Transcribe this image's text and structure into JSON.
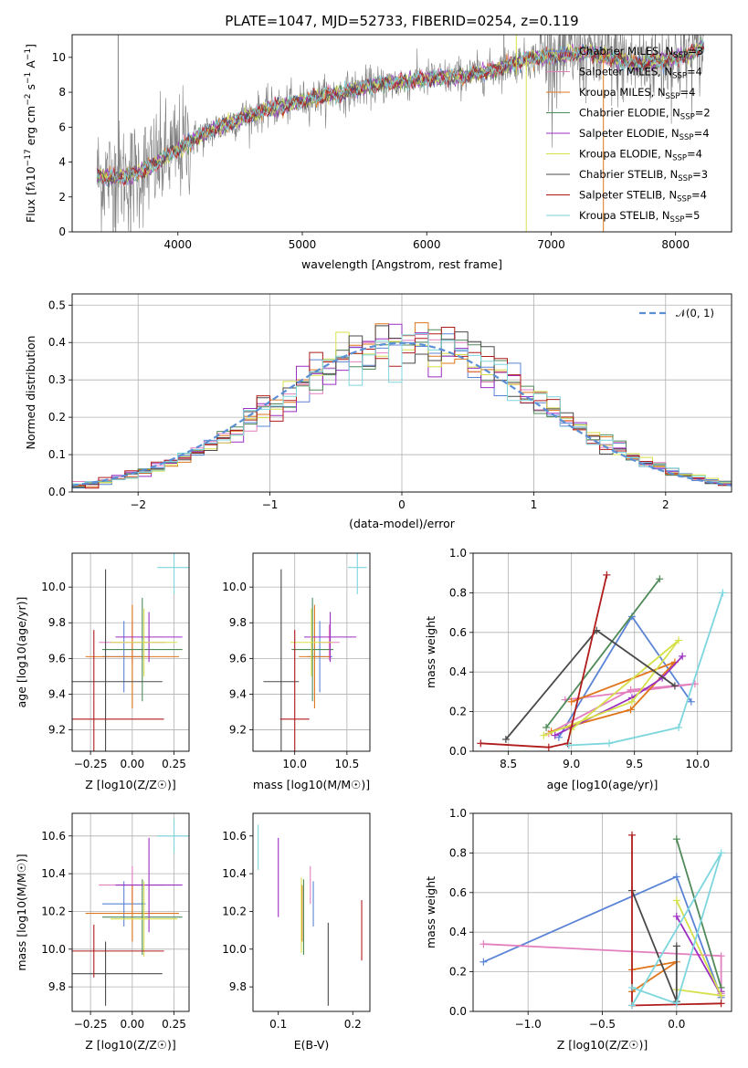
{
  "colors": {
    "chabrier_miles": "#5b84d6",
    "salpeter_miles": "#e37fbf",
    "kroupa_miles": "#e0761b",
    "chabrier_elodie": "#4f8a58",
    "salpeter_elodie": "#9b2ec2",
    "kroupa_elodie": "#d6e04a",
    "chabrier_stelib": "#4a4a4a",
    "salpeter_stelib": "#b01c1c",
    "kroupa_stelib": "#7dd6de",
    "gaussian": "#5a8fd6"
  },
  "chart_data": [
    {
      "id": "spectrum",
      "type": "line",
      "title": "PLATE=1047, MJD=52733, FIBERID=0254, z=0.119",
      "xlabel": "wavelength [Angstrom, rest frame]",
      "ylabel": "Flux [f_λ10^-17 erg cm^-2 s^-1 A^-1]",
      "xlim": [
        3150,
        8450
      ],
      "ylim": [
        0,
        11.3
      ],
      "xticks": [
        "4000",
        "5000",
        "6000",
        "7000",
        "8000"
      ],
      "yticks": [
        "0",
        "2",
        "4",
        "6",
        "8",
        "10"
      ],
      "legend_position": "top-right",
      "legend": [
        "Chabrier MILES, N_SSP=3",
        "Salpeter MILES, N_SSP=4",
        "Kroupa MILES, N_SSP=4",
        "Chabrier ELODIE, N_SSP=2",
        "Salpeter ELODIE, N_SSP=4",
        "Kroupa ELODIE, N_SSP=4",
        "Chabrier STELIB, N_SSP=3",
        "Salpeter STELIB, N_SSP=4",
        "Kroupa STELIB, N_SSP=5"
      ],
      "continuum": {
        "wavelength": [
          3350,
          3500,
          3650,
          3800,
          3950,
          4100,
          4300,
          4500,
          4700,
          4900,
          5100,
          5300,
          5500,
          5700,
          5900,
          6100,
          6300,
          6500,
          6700,
          6900,
          7100,
          7300,
          7500,
          7700,
          7900,
          8100,
          8200
        ],
        "flux": [
          3.2,
          3.1,
          3.3,
          3.8,
          4.5,
          5.2,
          5.9,
          6.5,
          7.0,
          7.3,
          7.7,
          7.9,
          8.3,
          8.5,
          8.7,
          8.8,
          8.95,
          9.2,
          9.7,
          10.0,
          10.1,
          10.3,
          9.9,
          9.6,
          9.8,
          10.1,
          10.6
        ]
      },
      "grid": false
    },
    {
      "id": "residuals",
      "type": "histogram",
      "xlabel": "(data-model)/error",
      "ylabel": "Normed distribution",
      "xlim": [
        -2.5,
        2.5
      ],
      "ylim": [
        0,
        0.53
      ],
      "xticks": [
        "−2",
        "−1",
        "0",
        "1",
        "2"
      ],
      "yticks": [
        "0.0",
        "0.1",
        "0.2",
        "0.3",
        "0.4",
        "0.5"
      ],
      "legend": [
        "𝒩(0, 1)"
      ],
      "legend_position": "top-right",
      "grid": true,
      "bin_width": 0.1
    },
    {
      "id": "age_vs_Z",
      "type": "errorbar",
      "xlabel": "Z [log10(Z/Z☉)]",
      "ylabel": "age [log10(age/yr)]",
      "xlim": [
        -0.36,
        0.34
      ],
      "ylim": [
        9.08,
        10.19
      ],
      "xticks": [
        "−0.25",
        "0.00",
        "0.25"
      ],
      "yticks": [
        "9.2",
        "9.4",
        "9.6",
        "9.8",
        "10.0"
      ],
      "grid": true,
      "points": [
        {
          "model": "chabrier_miles",
          "x": -0.05,
          "xerr": 0.13,
          "y": 9.61,
          "yerr": 0.2
        },
        {
          "model": "salpeter_miles",
          "x": 0.0,
          "xerr": 0.2,
          "y": 9.69,
          "yerr": 0.12
        },
        {
          "model": "kroupa_miles",
          "x": 0.0,
          "xerr": 0.28,
          "y": 9.61,
          "yerr": 0.29
        },
        {
          "model": "chabrier_elodie",
          "x": 0.06,
          "xerr": 0.24,
          "y": 9.65,
          "yerr": 0.29
        },
        {
          "model": "salpeter_elodie",
          "x": 0.1,
          "xerr": 0.2,
          "y": 9.72,
          "yerr": 0.14
        },
        {
          "model": "kroupa_elodie",
          "x": 0.07,
          "xerr": 0.2,
          "y": 9.69,
          "yerr": 0.19
        },
        {
          "model": "chabrier_stelib",
          "x": -0.16,
          "xerr": 0.34,
          "y": 9.47,
          "yerr": 0.63
        },
        {
          "model": "salpeter_stelib",
          "x": -0.23,
          "xerr": 0.42,
          "y": 9.26,
          "yerr": 0.5
        },
        {
          "model": "kroupa_stelib",
          "x": 0.25,
          "xerr": 0.1,
          "y": 10.11,
          "yerr": 0.15
        }
      ]
    },
    {
      "id": "age_vs_mass",
      "type": "errorbar",
      "xlabel": "mass [log10(M/M☉)]",
      "ylabel": "",
      "xlim": [
        9.6,
        10.72
      ],
      "ylim": [
        9.08,
        10.19
      ],
      "xticks": [
        "10.0",
        "10.5"
      ],
      "yticks": [
        "9.2",
        "9.4",
        "9.6",
        "9.8",
        "10.0"
      ],
      "grid": true,
      "points": [
        {
          "model": "chabrier_miles",
          "x": 10.24,
          "xerr": 0.12,
          "y": 9.61,
          "yerr": 0.2
        },
        {
          "model": "salpeter_miles",
          "x": 10.33,
          "xerr": 0.1,
          "y": 9.69,
          "yerr": 0.1
        },
        {
          "model": "kroupa_miles",
          "x": 10.19,
          "xerr": 0.15,
          "y": 9.61,
          "yerr": 0.29
        },
        {
          "model": "chabrier_elodie",
          "x": 10.17,
          "xerr": 0.2,
          "y": 9.65,
          "yerr": 0.29
        },
        {
          "model": "salpeter_elodie",
          "x": 10.34,
          "xerr": 0.25,
          "y": 9.72,
          "yerr": 0.14
        },
        {
          "model": "kroupa_elodie",
          "x": 10.16,
          "xerr": 0.2,
          "y": 9.69,
          "yerr": 0.19
        },
        {
          "model": "chabrier_stelib",
          "x": 9.87,
          "xerr": 0.17,
          "y": 9.47,
          "yerr": 0.63
        },
        {
          "model": "salpeter_stelib",
          "x": 10.0,
          "xerr": 0.14,
          "y": 9.26,
          "yerr": 0.5
        },
        {
          "model": "kroupa_stelib",
          "x": 10.6,
          "xerr": 0.09,
          "y": 10.11,
          "yerr": 0.15
        }
      ]
    },
    {
      "id": "mass_weight_vs_age",
      "type": "line",
      "xlabel": "age [log10(age/yr)]",
      "ylabel": "mass weight",
      "xlim": [
        8.22,
        10.27
      ],
      "ylim": [
        0.0,
        1.0
      ],
      "xticks": [
        "8.5",
        "9.0",
        "9.5",
        "10.0"
      ],
      "yticks": [
        "0.0",
        "0.2",
        "0.4",
        "0.6",
        "0.8",
        "1.0"
      ],
      "grid": true,
      "series": [
        {
          "model": "chabrier_miles",
          "x": [
            8.9,
            9.48,
            9.95
          ],
          "y": [
            0.07,
            0.68,
            0.25
          ]
        },
        {
          "model": "salpeter_miles",
          "x": [
            8.82,
            9.47,
            9.98,
            8.95
          ],
          "y": [
            0.09,
            0.31,
            0.34,
            0.26
          ]
        },
        {
          "model": "kroupa_miles",
          "x": [
            8.84,
            9.47,
            9.82,
            9.0
          ],
          "y": [
            0.1,
            0.21,
            0.45,
            0.25
          ]
        },
        {
          "model": "chabrier_elodie",
          "x": [
            8.8,
            9.7
          ],
          "y": [
            0.12,
            0.87
          ]
        },
        {
          "model": "salpeter_elodie",
          "x": [
            8.87,
            9.48,
            9.72,
            9.88
          ],
          "y": [
            0.08,
            0.27,
            0.37,
            0.48
          ]
        },
        {
          "model": "kroupa_elodie",
          "x": [
            8.78,
            9.48,
            9.85,
            9.0
          ],
          "y": [
            0.08,
            0.25,
            0.56,
            0.11
          ]
        },
        {
          "model": "chabrier_stelib",
          "x": [
            8.48,
            9.2,
            9.82
          ],
          "y": [
            0.06,
            0.61,
            0.33
          ]
        },
        {
          "model": "salpeter_stelib",
          "x": [
            8.28,
            8.82,
            8.97,
            9.28
          ],
          "y": [
            0.04,
            0.02,
            0.04,
            0.89
          ]
        },
        {
          "model": "kroupa_stelib",
          "x": [
            8.98,
            9.3,
            9.85,
            10.2
          ],
          "y": [
            0.03,
            0.04,
            0.12,
            0.8
          ]
        }
      ]
    },
    {
      "id": "mass_vs_Z",
      "type": "errorbar",
      "xlabel": "Z [log10(Z/Z☉)]",
      "ylabel": "mass [log10(M/M☉)]",
      "xlim": [
        -0.36,
        0.34
      ],
      "ylim": [
        9.67,
        10.72
      ],
      "xticks": [
        "−0.25",
        "0.00",
        "0.25"
      ],
      "yticks": [
        "9.8",
        "10.0",
        "10.2",
        "10.4",
        "10.6"
      ],
      "grid": true,
      "points": [
        {
          "model": "chabrier_miles",
          "x": -0.05,
          "xerr": 0.13,
          "y": 10.24,
          "yerr": 0.12
        },
        {
          "model": "salpeter_miles",
          "x": 0.0,
          "xerr": 0.2,
          "y": 10.34,
          "yerr": 0.1
        },
        {
          "model": "kroupa_miles",
          "x": 0.0,
          "xerr": 0.28,
          "y": 10.19,
          "yerr": 0.15
        },
        {
          "model": "chabrier_elodie",
          "x": 0.06,
          "xerr": 0.24,
          "y": 10.17,
          "yerr": 0.2
        },
        {
          "model": "salpeter_elodie",
          "x": 0.1,
          "xerr": 0.2,
          "y": 10.34,
          "yerr": 0.25
        },
        {
          "model": "kroupa_elodie",
          "x": 0.07,
          "xerr": 0.2,
          "y": 10.16,
          "yerr": 0.2
        },
        {
          "model": "chabrier_stelib",
          "x": -0.16,
          "xerr": 0.34,
          "y": 9.87,
          "yerr": 0.17
        },
        {
          "model": "salpeter_stelib",
          "x": -0.23,
          "xerr": 0.42,
          "y": 9.99,
          "yerr": 0.14
        },
        {
          "model": "kroupa_stelib",
          "x": 0.25,
          "xerr": 0.1,
          "y": 10.6,
          "yerr": 0.09
        }
      ]
    },
    {
      "id": "mass_vs_ebv",
      "type": "errorbar",
      "xlabel": "E(B-V)",
      "ylabel": "",
      "xlim": [
        0.066,
        0.223
      ],
      "ylim": [
        9.67,
        10.72
      ],
      "xticks": [
        "0.1",
        "0.2"
      ],
      "yticks": [
        "9.8",
        "10.0",
        "10.2",
        "10.4",
        "10.6"
      ],
      "grid": false,
      "points": [
        {
          "model": "chabrier_miles",
          "x": 0.147,
          "y": 10.24,
          "yerr": 0.12
        },
        {
          "model": "salpeter_miles",
          "x": 0.143,
          "y": 10.34,
          "yerr": 0.1
        },
        {
          "model": "kroupa_miles",
          "x": 0.132,
          "y": 10.19,
          "yerr": 0.15
        },
        {
          "model": "chabrier_elodie",
          "x": 0.134,
          "y": 10.17,
          "yerr": 0.2
        },
        {
          "model": "salpeter_elodie",
          "x": 0.1,
          "y": 10.38,
          "yerr": 0.21
        },
        {
          "model": "kroupa_elodie",
          "x": 0.131,
          "y": 10.18,
          "yerr": 0.2
        },
        {
          "model": "chabrier_stelib",
          "x": 0.167,
          "y": 9.92,
          "yerr": 0.22
        },
        {
          "model": "salpeter_stelib",
          "x": 0.212,
          "y": 10.1,
          "yerr": 0.16
        },
        {
          "model": "kroupa_stelib",
          "x": 0.073,
          "y": 10.54,
          "yerr": 0.12
        }
      ]
    },
    {
      "id": "mass_weight_vs_Z",
      "type": "line",
      "xlabel": "Z [log10(Z/Z☉)]",
      "ylabel": "mass weight",
      "xlim": [
        -1.37,
        0.37
      ],
      "ylim": [
        0.0,
        1.0
      ],
      "xticks": [
        "−1.0",
        "−0.5",
        "0.0"
      ],
      "yticks": [
        "0.0",
        "0.2",
        "0.4",
        "0.6",
        "0.8",
        "1.0"
      ],
      "grid": true,
      "series": [
        {
          "model": "chabrier_miles",
          "x": [
            -1.3,
            0.0,
            0.3
          ],
          "y": [
            0.25,
            0.68,
            0.07
          ]
        },
        {
          "model": "salpeter_miles",
          "x": [
            -1.3,
            0.3,
            0.3
          ],
          "y": [
            0.34,
            0.28,
            0.09
          ]
        },
        {
          "model": "kroupa_miles",
          "x": [
            -0.3,
            0.0,
            -0.3
          ],
          "y": [
            0.21,
            0.25,
            0.1
          ]
        },
        {
          "model": "chabrier_elodie",
          "x": [
            0.0,
            0.3
          ],
          "y": [
            0.87,
            0.12
          ]
        },
        {
          "model": "salpeter_elodie",
          "x": [
            0.0,
            0.3,
            0.3
          ],
          "y": [
            0.48,
            0.08,
            0.1
          ]
        },
        {
          "model": "kroupa_elodie",
          "x": [
            0.0,
            0.3,
            0.0
          ],
          "y": [
            0.56,
            0.08,
            0.11
          ]
        },
        {
          "model": "chabrier_stelib",
          "x": [
            -0.3,
            0.0,
            0.0
          ],
          "y": [
            0.61,
            0.05,
            0.33
          ]
        },
        {
          "model": "salpeter_stelib",
          "x": [
            -0.3,
            -0.3,
            0.3
          ],
          "y": [
            0.89,
            0.03,
            0.04
          ]
        },
        {
          "model": "kroupa_stelib",
          "x": [
            -0.3,
            0.0,
            0.3,
            -0.3
          ],
          "y": [
            0.12,
            0.04,
            0.8,
            0.03
          ]
        }
      ]
    }
  ]
}
